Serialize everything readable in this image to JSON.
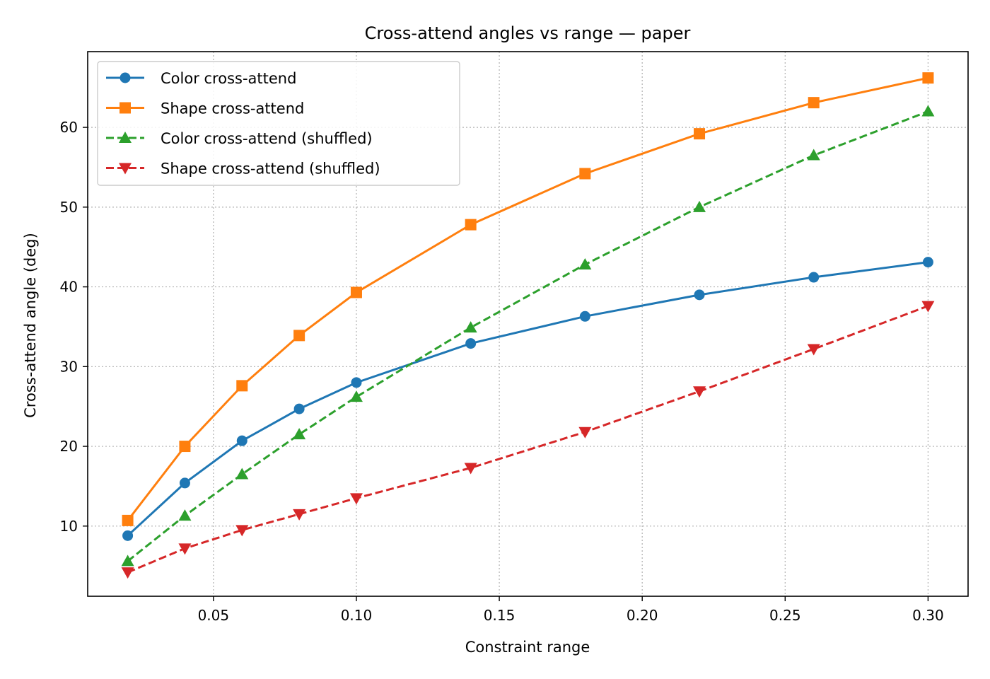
{
  "chart_data": {
    "type": "line",
    "title": "Cross-attend angles vs range — paper",
    "xlabel": "Constraint range",
    "ylabel": "Cross-attend angle (deg)",
    "xlim": [
      0.006,
      0.314
    ],
    "ylim": [
      1.2,
      69.5
    ],
    "xticks": [
      0.05,
      0.1,
      0.15,
      0.2,
      0.25,
      0.3
    ],
    "xtick_labels": [
      "0.05",
      "0.10",
      "0.15",
      "0.20",
      "0.25",
      "0.30"
    ],
    "yticks": [
      10,
      20,
      30,
      40,
      50,
      60
    ],
    "ytick_labels": [
      "10",
      "20",
      "30",
      "40",
      "50",
      "60"
    ],
    "grid": true,
    "legend_position": "top-left",
    "x": [
      0.02,
      0.04,
      0.06,
      0.08,
      0.1,
      0.14,
      0.18,
      0.22,
      0.26,
      0.3
    ],
    "series": [
      {
        "name": "Color cross-attend",
        "color": "#1f77b4",
        "marker": "circle",
        "line": "solid",
        "values": [
          8.8,
          15.4,
          20.7,
          24.7,
          28.0,
          32.9,
          36.3,
          39.0,
          41.2,
          43.1
        ]
      },
      {
        "name": "Shape cross-attend",
        "color": "#ff7f0e",
        "marker": "square",
        "line": "solid",
        "values": [
          10.7,
          20.0,
          27.6,
          33.9,
          39.3,
          47.8,
          54.2,
          59.2,
          63.1,
          66.2
        ]
      },
      {
        "name": "Color cross-attend (shuffled)",
        "color": "#2ca02c",
        "marker": "triangle-up",
        "line": "dashed",
        "values": [
          5.6,
          11.3,
          16.5,
          21.5,
          26.2,
          34.9,
          42.8,
          50.0,
          56.5,
          62.0
        ]
      },
      {
        "name": "Shape cross-attend (shuffled)",
        "color": "#d62728",
        "marker": "triangle-down",
        "line": "dashed",
        "values": [
          4.2,
          7.2,
          9.5,
          11.5,
          13.5,
          17.3,
          21.8,
          26.9,
          32.2,
          37.6
        ]
      }
    ]
  }
}
